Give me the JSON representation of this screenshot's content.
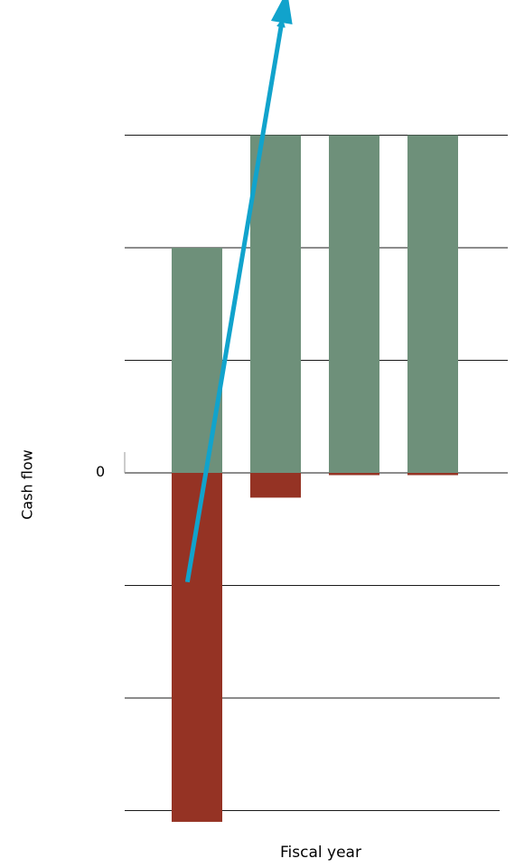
{
  "chart_data": {
    "type": "bar",
    "stacked": true,
    "xlabel": "Fiscal year",
    "ylabel": "Cash flow",
    "y_tick_labels": [
      "0"
    ],
    "y_gridlines": [
      -3,
      -2,
      -1,
      0,
      1,
      2,
      3
    ],
    "grid": true,
    "ylim": [
      -3.1,
      3
    ],
    "categories": [
      "",
      "",
      "",
      ""
    ],
    "series": [
      {
        "values": [
          2,
          3,
          3,
          3
        ],
        "color": "#6e907a"
      },
      {
        "values": [
          -3.1,
          -0.22,
          -0.02,
          -0.02
        ],
        "color": "#953324"
      }
    ],
    "trend_arrow": {
      "color": "#11a3cc",
      "start": [
        0.2,
        -0.97
      ],
      "end": [
        1.4,
        4.0
      ]
    }
  }
}
